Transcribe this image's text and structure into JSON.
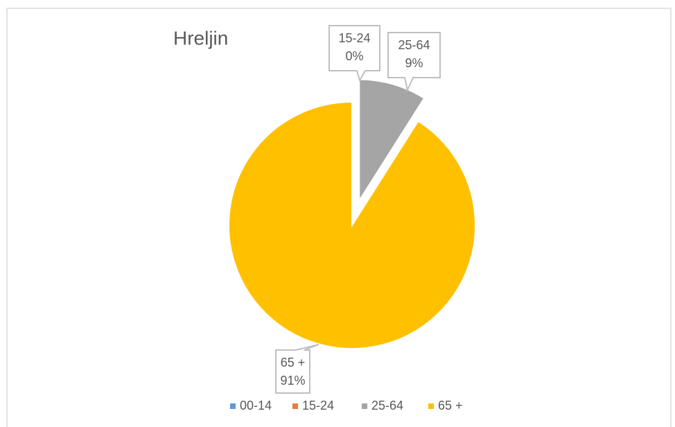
{
  "chart_data": {
    "type": "pie",
    "title": "Hreljin",
    "categories": [
      "00-14",
      "15-24",
      "25-64",
      "65 +"
    ],
    "values": [
      0,
      0,
      9,
      91
    ],
    "value_labels": [
      null,
      "0%",
      "9%",
      "91%"
    ],
    "colors": [
      "#5b9bd5",
      "#ed7d31",
      "#a5a5a5",
      "#ffc000"
    ],
    "legend": "bottom"
  }
}
